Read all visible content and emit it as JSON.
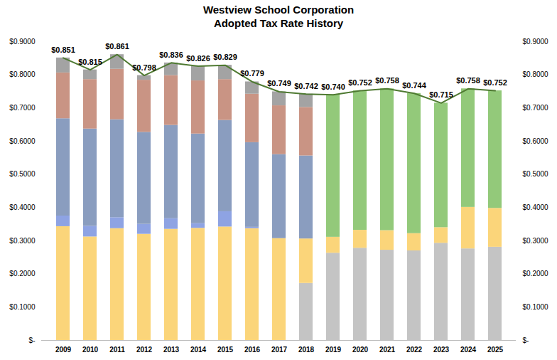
{
  "chart_data": {
    "type": "bar",
    "stacked": true,
    "title": "Westview School Corporation",
    "subtitle": "Adopted Tax Rate History",
    "categories": [
      "2009",
      "2010",
      "2011",
      "2012",
      "2013",
      "2014",
      "2015",
      "2016",
      "2017",
      "2018",
      "2019",
      "2020",
      "2021",
      "2022",
      "2023",
      "2024",
      "2025"
    ],
    "ylim": [
      0,
      0.9
    ],
    "yticks": [
      {
        "value": 0,
        "label": "$-"
      },
      {
        "value": 0.1,
        "label": "$0.1000"
      },
      {
        "value": 0.2,
        "label": "$0.2000"
      },
      {
        "value": 0.3,
        "label": "$0.3000"
      },
      {
        "value": 0.4,
        "label": "$0.4000"
      },
      {
        "value": 0.5,
        "label": "$0.5000"
      },
      {
        "value": 0.6,
        "label": "$0.6000"
      },
      {
        "value": 0.7,
        "label": "$0.7000"
      },
      {
        "value": 0.8,
        "label": "$0.8000"
      },
      {
        "value": 0.9,
        "label": "$0.9000"
      }
    ],
    "y2lim": [
      0,
      0.9
    ],
    "y2ticks": [
      {
        "value": 0,
        "label": "$-"
      },
      {
        "value": 0.1,
        "label": "$0.1000"
      },
      {
        "value": 0.2,
        "label": "$0.2000"
      },
      {
        "value": 0.3,
        "label": "$0.3000"
      },
      {
        "value": 0.4,
        "label": "$0.4000"
      },
      {
        "value": 0.5,
        "label": "$0.5000"
      },
      {
        "value": 0.6,
        "label": "$0.6000"
      },
      {
        "value": 0.7,
        "label": "$0.7000"
      },
      {
        "value": 0.8,
        "label": "$0.8000"
      },
      {
        "value": 0.9,
        "label": "$0.9000"
      }
    ],
    "grid": false,
    "series": [
      {
        "type": "bar",
        "color": "#c4c4c4",
        "values": [
          null,
          null,
          null,
          null,
          null,
          null,
          null,
          null,
          null,
          0.172,
          0.263,
          0.278,
          0.272,
          0.27,
          0.293,
          0.276,
          0.281
        ]
      },
      {
        "type": "bar",
        "color": "#fbd57a",
        "values": [
          0.343,
          0.312,
          0.337,
          0.32,
          0.335,
          0.338,
          0.342,
          0.337,
          0.307,
          0.134,
          0.048,
          0.054,
          0.059,
          0.052,
          0.047,
          0.125,
          0.117
        ]
      },
      {
        "type": "bar",
        "color": "#8ea3e3",
        "values": [
          0.032,
          0.032,
          0.033,
          0.03,
          0.032,
          0.014,
          0.046,
          0.004,
          null,
          null,
          null,
          null,
          null,
          null,
          null,
          null,
          null
        ]
      },
      {
        "type": "bar",
        "color": "#8a9dbf",
        "values": [
          0.293,
          0.293,
          0.295,
          0.277,
          0.281,
          0.27,
          0.275,
          0.255,
          0.253,
          0.25,
          null,
          null,
          null,
          null,
          null,
          null,
          null
        ]
      },
      {
        "type": "bar",
        "color": "#c99484",
        "values": [
          0.138,
          0.149,
          0.152,
          0.157,
          0.15,
          0.16,
          0.123,
          0.146,
          0.147,
          0.146,
          null,
          null,
          null,
          null,
          null,
          null,
          null
        ]
      },
      {
        "type": "bar",
        "color": "#93c97a",
        "values": [
          null,
          null,
          null,
          null,
          null,
          null,
          null,
          null,
          null,
          null,
          0.429,
          0.42,
          0.427,
          0.422,
          0.375,
          0.357,
          0.354
        ]
      },
      {
        "type": "bar",
        "color": "#a3a3a3",
        "values": [
          0.045,
          0.029,
          0.044,
          0.014,
          0.038,
          0.044,
          0.043,
          0.037,
          0.042,
          0.04,
          null,
          null,
          null,
          null,
          null,
          null,
          null
        ]
      },
      {
        "type": "line",
        "color": "#4f7a32",
        "data_labels": true,
        "values": [
          0.851,
          0.815,
          0.861,
          0.798,
          0.836,
          0.826,
          0.829,
          0.779,
          0.749,
          0.742,
          0.74,
          0.752,
          0.758,
          0.744,
          0.715,
          0.758,
          0.752
        ],
        "value_labels": [
          "$0.851",
          "$0.815",
          "$0.861",
          "$0.798",
          "$0.836",
          "$0.826",
          "$0.829",
          "$0.779",
          "$0.749",
          "$0.742",
          "$0.740",
          "$0.752",
          "$0.758",
          "$0.744",
          "$0.715",
          "$0.758",
          "$0.752"
        ]
      }
    ]
  }
}
